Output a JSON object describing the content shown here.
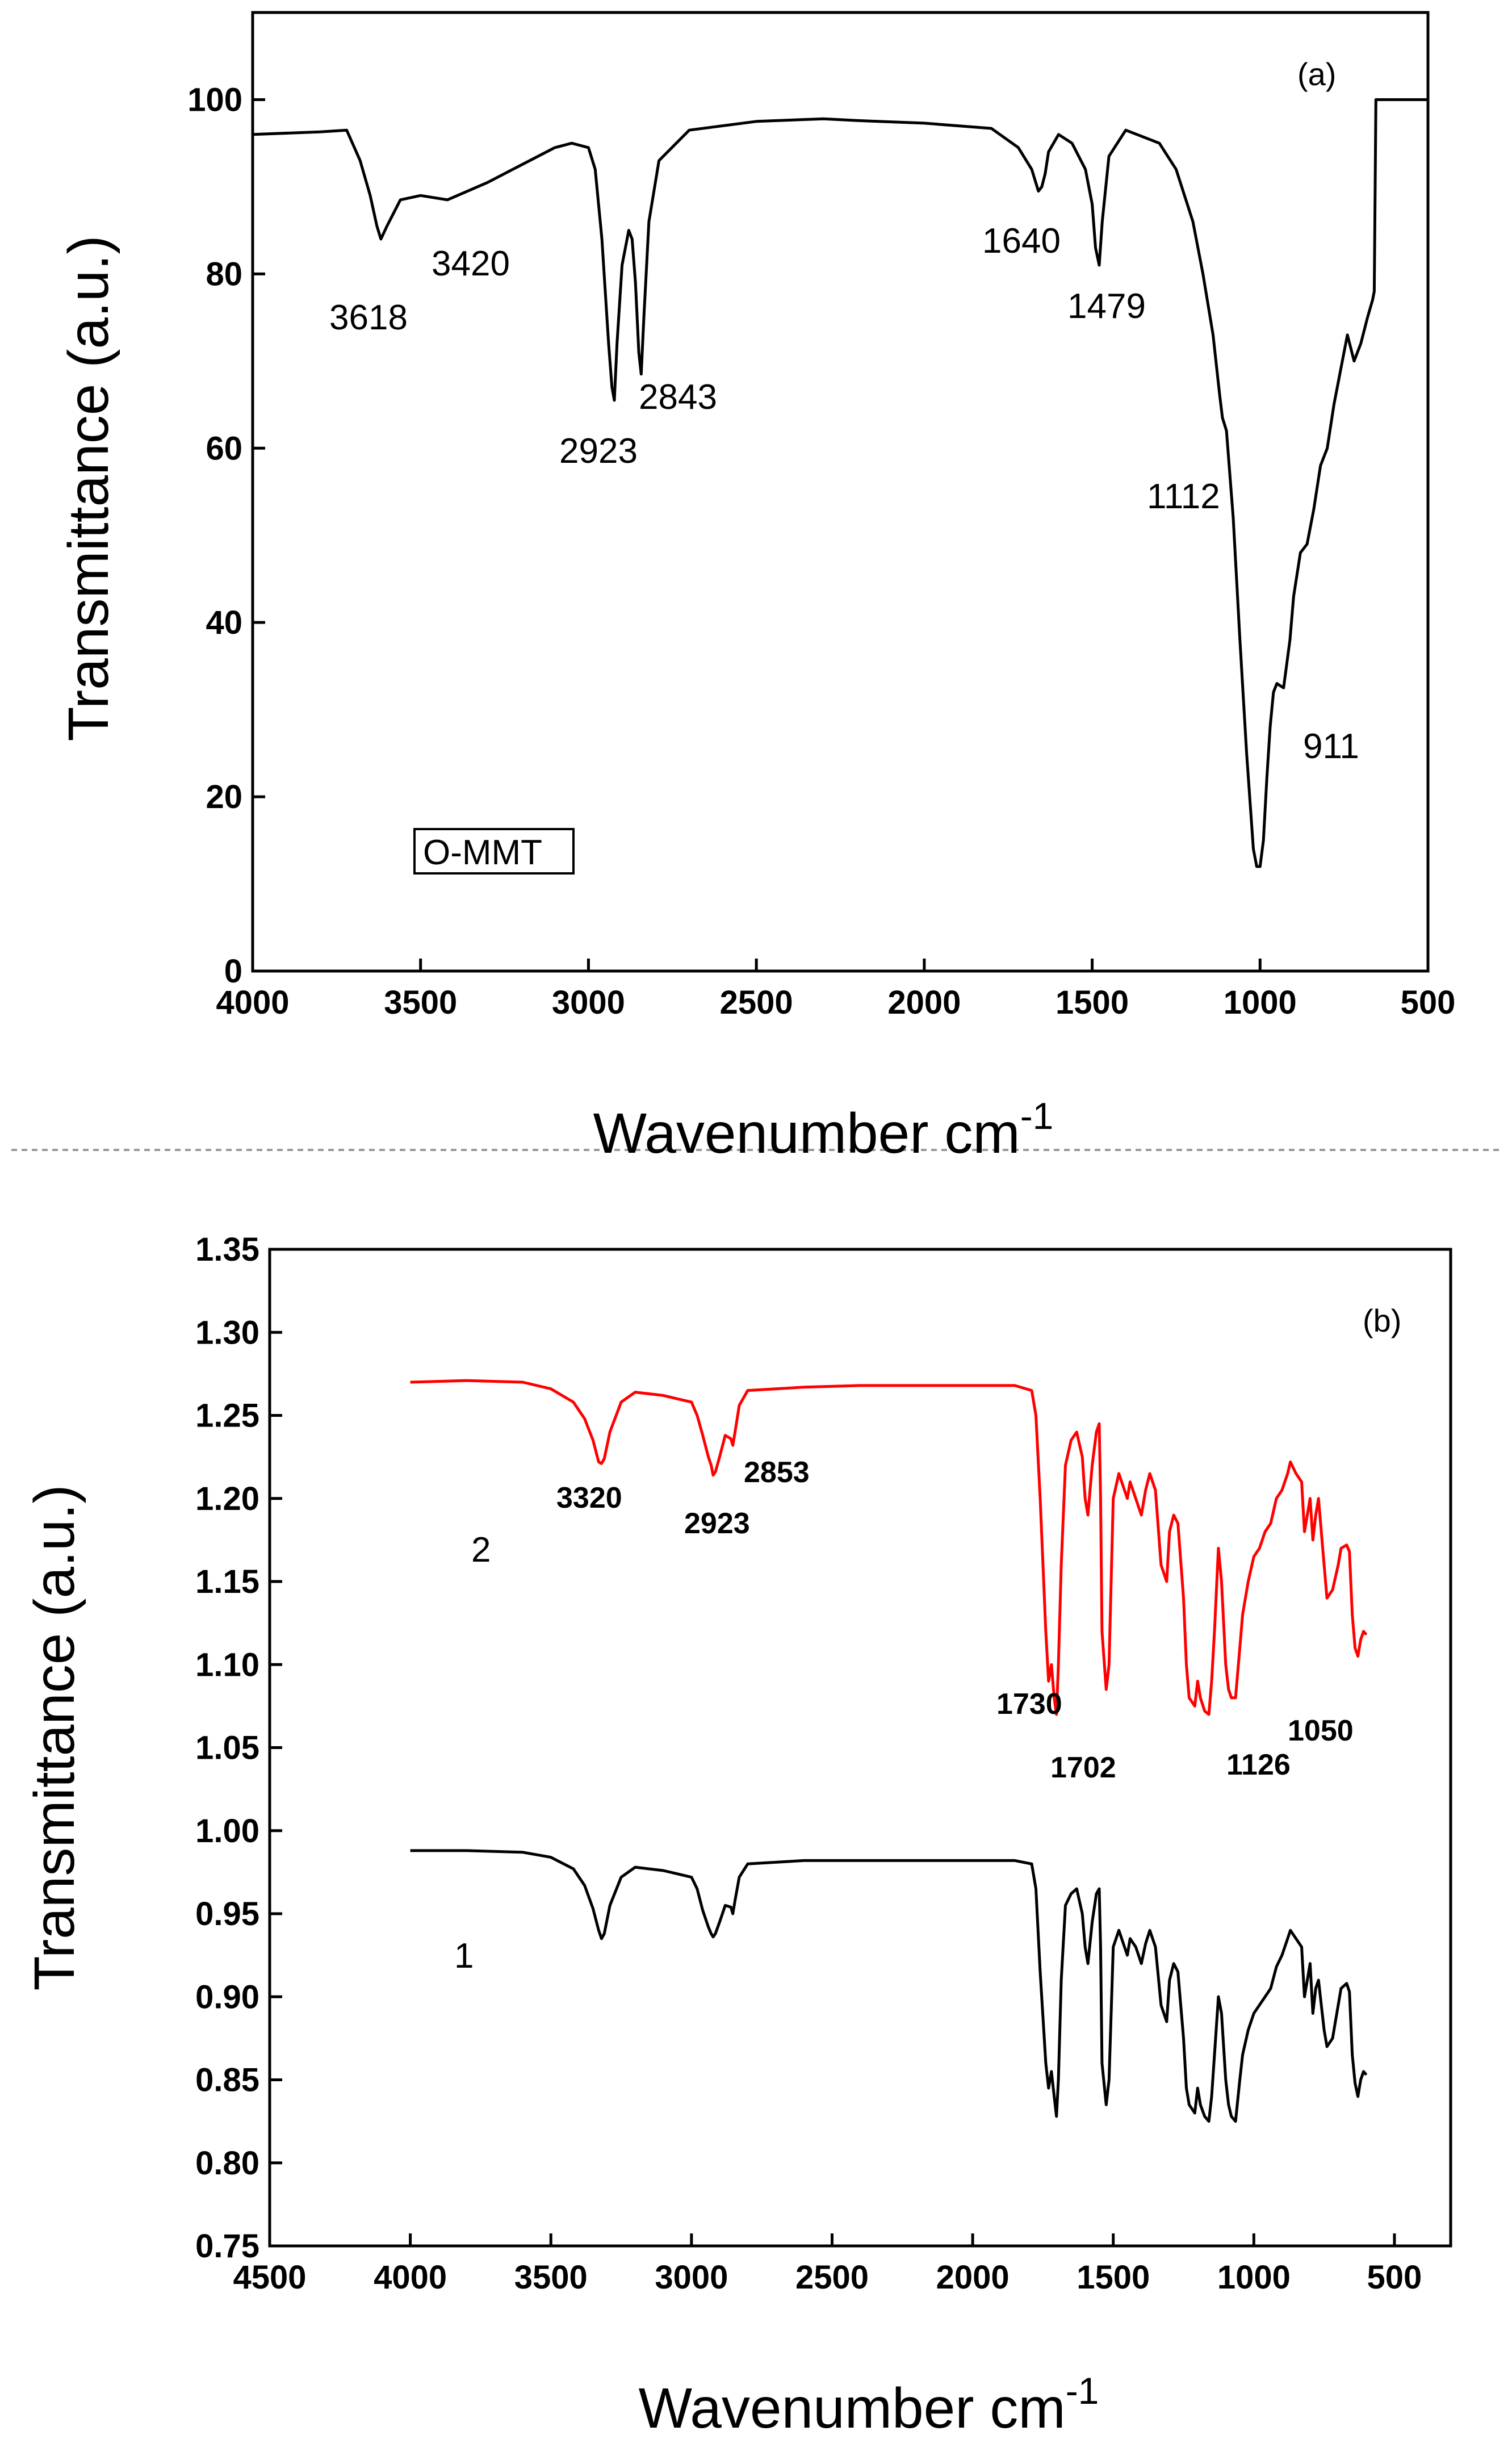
{
  "chart_data": [
    {
      "type": "line",
      "panel_label": "(a)",
      "xlabel": "Wavenumber cm",
      "xlabel_sup": "-1",
      "ylabel": "Transmittance (a.u.)",
      "xlim": [
        4000,
        500
      ],
      "ylim": [
        0,
        110
      ],
      "xticks": [
        4000,
        3500,
        3000,
        2500,
        2000,
        1500,
        1000,
        500
      ],
      "xtick_labels": [
        "4000",
        "3500",
        "3000",
        "2500",
        "2000",
        "1500",
        "1000",
        "500"
      ],
      "yticks": [
        0,
        20,
        40,
        60,
        80,
        100
      ],
      "ytick_labels": [
        "0",
        "20",
        "40",
        "60",
        "80",
        "100"
      ],
      "legend": "O-MMT",
      "series": [
        {
          "name": "O-MMT",
          "color": "#000000",
          "x": [
            4000,
            3800,
            3720,
            3680,
            3650,
            3630,
            3618,
            3600,
            3560,
            3500,
            3420,
            3300,
            3200,
            3100,
            3050,
            3000,
            2980,
            2960,
            2940,
            2930,
            2923,
            2915,
            2900,
            2880,
            2870,
            2860,
            2850,
            2843,
            2835,
            2820,
            2790,
            2700,
            2500,
            2300,
            2200,
            2000,
            1800,
            1720,
            1680,
            1660,
            1650,
            1640,
            1630,
            1600,
            1560,
            1520,
            1500,
            1490,
            1479,
            1470,
            1450,
            1400,
            1300,
            1250,
            1200,
            1170,
            1140,
            1120,
            1112,
            1100,
            1080,
            1060,
            1040,
            1020,
            1010,
            1000,
            990,
            980,
            970,
            960,
            950,
            930,
            911,
            900,
            880,
            860,
            840,
            820,
            800,
            780,
            760,
            740,
            720,
            700,
            680,
            665,
            660,
            655,
            550,
            500
          ],
          "y": [
            96,
            96.3,
            96.5,
            93,
            89,
            85.5,
            84,
            85.5,
            88.5,
            89,
            88.5,
            90.5,
            92.5,
            94.5,
            95,
            94.5,
            92,
            84,
            72,
            67,
            65.5,
            72,
            81,
            85,
            84,
            79,
            71,
            68.5,
            75,
            86,
            93,
            96.5,
            97.5,
            97.8,
            97.6,
            97.3,
            96.7,
            94.5,
            92,
            89.5,
            90,
            91.5,
            94,
            96,
            95,
            92,
            88,
            83,
            81,
            86,
            93.5,
            96.5,
            95,
            92,
            86,
            80,
            73,
            66,
            63.5,
            62,
            52,
            38,
            25,
            14,
            12,
            12,
            15,
            22,
            28,
            32,
            33,
            32.5,
            38,
            43,
            48,
            49,
            53,
            58,
            60,
            65,
            69,
            73,
            70,
            72,
            75,
            77,
            78,
            100,
            100,
            100
          ]
        }
      ],
      "annotations": [
        {
          "text": "3618",
          "x": 3618
        },
        {
          "text": "3420",
          "x": 3420
        },
        {
          "text": "2923",
          "x": 2923
        },
        {
          "text": "2843",
          "x": 2843
        },
        {
          "text": "1640",
          "x": 1640
        },
        {
          "text": "1479",
          "x": 1479
        },
        {
          "text": "1112",
          "x": 1112
        },
        {
          "text": "911",
          "x": 911
        }
      ]
    },
    {
      "type": "line",
      "panel_label": "(b)",
      "xlabel": "Wavenumber cm",
      "xlabel_sup": "-1",
      "ylabel": "Transmittance (a.u.)",
      "xlim": [
        4500,
        300
      ],
      "ylim": [
        0.75,
        1.35
      ],
      "xticks": [
        4500,
        4000,
        3500,
        3000,
        2500,
        2000,
        1500,
        1000,
        500
      ],
      "xtick_labels": [
        "4500",
        "4000",
        "3500",
        "3000",
        "2500",
        "2000",
        "1500",
        "1000",
        "500"
      ],
      "yticks": [
        0.75,
        0.8,
        0.85,
        0.9,
        0.95,
        1.0,
        1.05,
        1.1,
        1.15,
        1.2,
        1.25,
        1.3,
        1.35
      ],
      "ytick_labels": [
        "0.75",
        "0.80",
        "0.85",
        "0.90",
        "0.95",
        "1.00",
        "1.05",
        "1.10",
        "1.15",
        "1.20",
        "1.25",
        "1.30",
        "1.35"
      ],
      "series": [
        {
          "name": "2",
          "color": "#ff0000",
          "x": [
            4000,
            3800,
            3600,
            3500,
            3420,
            3380,
            3350,
            3330,
            3320,
            3310,
            3290,
            3250,
            3200,
            3100,
            3050,
            3000,
            2980,
            2960,
            2940,
            2930,
            2923,
            2915,
            2900,
            2880,
            2860,
            2853,
            2845,
            2830,
            2800,
            2600,
            2400,
            2200,
            2000,
            1850,
            1790,
            1775,
            1760,
            1740,
            1730,
            1720,
            1710,
            1702,
            1695,
            1685,
            1670,
            1650,
            1630,
            1610,
            1600,
            1590,
            1575,
            1560,
            1550,
            1545,
            1540,
            1525,
            1515,
            1500,
            1480,
            1460,
            1450,
            1440,
            1420,
            1400,
            1385,
            1370,
            1350,
            1330,
            1310,
            1300,
            1285,
            1270,
            1250,
            1240,
            1230,
            1210,
            1200,
            1190,
            1175,
            1160,
            1150,
            1140,
            1126,
            1115,
            1100,
            1090,
            1080,
            1065,
            1050,
            1040,
            1020,
            1000,
            980,
            960,
            940,
            920,
            900,
            880,
            870,
            850,
            830,
            820,
            800,
            790,
            780,
            770,
            750,
            740,
            720,
            700,
            690,
            670,
            660,
            650,
            640,
            630,
            620,
            610,
            600
          ],
          "y": [
            1.27,
            1.271,
            1.27,
            1.266,
            1.258,
            1.248,
            1.235,
            1.222,
            1.221,
            1.224,
            1.24,
            1.258,
            1.264,
            1.262,
            1.26,
            1.258,
            1.25,
            1.238,
            1.225,
            1.22,
            1.214,
            1.216,
            1.225,
            1.238,
            1.236,
            1.232,
            1.24,
            1.256,
            1.265,
            1.267,
            1.268,
            1.268,
            1.268,
            1.268,
            1.265,
            1.25,
            1.2,
            1.12,
            1.09,
            1.1,
            1.08,
            1.07,
            1.1,
            1.16,
            1.22,
            1.235,
            1.24,
            1.225,
            1.2,
            1.19,
            1.22,
            1.24,
            1.245,
            1.2,
            1.12,
            1.085,
            1.1,
            1.2,
            1.215,
            1.205,
            1.2,
            1.21,
            1.2,
            1.19,
            1.205,
            1.215,
            1.205,
            1.16,
            1.15,
            1.18,
            1.19,
            1.185,
            1.14,
            1.1,
            1.08,
            1.075,
            1.09,
            1.08,
            1.072,
            1.07,
            1.09,
            1.12,
            1.17,
            1.15,
            1.1,
            1.085,
            1.08,
            1.08,
            1.11,
            1.13,
            1.15,
            1.165,
            1.17,
            1.18,
            1.185,
            1.2,
            1.205,
            1.215,
            1.222,
            1.215,
            1.21,
            1.18,
            1.2,
            1.175,
            1.19,
            1.2,
            1.16,
            1.14,
            1.145,
            1.16,
            1.17,
            1.172,
            1.168,
            1.13,
            1.11,
            1.105,
            1.115,
            1.12,
            1.118
          ]
        },
        {
          "name": "1",
          "color": "#000000",
          "x": [
            4000,
            3800,
            3600,
            3500,
            3420,
            3380,
            3350,
            3330,
            3320,
            3310,
            3290,
            3250,
            3200,
            3100,
            3050,
            3000,
            2980,
            2960,
            2940,
            2930,
            2923,
            2915,
            2900,
            2880,
            2860,
            2853,
            2845,
            2830,
            2800,
            2600,
            2400,
            2200,
            2000,
            1850,
            1790,
            1775,
            1760,
            1740,
            1730,
            1720,
            1710,
            1702,
            1695,
            1685,
            1670,
            1650,
            1630,
            1610,
            1600,
            1590,
            1575,
            1560,
            1550,
            1545,
            1540,
            1525,
            1515,
            1500,
            1480,
            1460,
            1450,
            1440,
            1420,
            1400,
            1385,
            1370,
            1350,
            1330,
            1310,
            1300,
            1285,
            1270,
            1250,
            1240,
            1230,
            1210,
            1200,
            1190,
            1175,
            1160,
            1150,
            1140,
            1126,
            1115,
            1100,
            1090,
            1080,
            1065,
            1050,
            1040,
            1020,
            1000,
            980,
            960,
            940,
            920,
            900,
            880,
            870,
            850,
            830,
            820,
            800,
            790,
            780,
            770,
            750,
            740,
            720,
            700,
            690,
            670,
            660,
            650,
            640,
            630,
            620,
            610,
            600
          ],
          "y": [
            0.988,
            0.988,
            0.987,
            0.984,
            0.977,
            0.967,
            0.953,
            0.94,
            0.935,
            0.938,
            0.955,
            0.972,
            0.978,
            0.976,
            0.974,
            0.972,
            0.965,
            0.952,
            0.942,
            0.938,
            0.936,
            0.938,
            0.945,
            0.955,
            0.954,
            0.95,
            0.958,
            0.972,
            0.98,
            0.982,
            0.982,
            0.982,
            0.982,
            0.982,
            0.98,
            0.965,
            0.915,
            0.86,
            0.845,
            0.855,
            0.84,
            0.828,
            0.85,
            0.91,
            0.955,
            0.962,
            0.965,
            0.95,
            0.93,
            0.92,
            0.945,
            0.962,
            0.965,
            0.93,
            0.86,
            0.835,
            0.85,
            0.93,
            0.94,
            0.93,
            0.925,
            0.935,
            0.93,
            0.92,
            0.932,
            0.94,
            0.93,
            0.895,
            0.885,
            0.91,
            0.92,
            0.915,
            0.875,
            0.845,
            0.835,
            0.83,
            0.845,
            0.835,
            0.828,
            0.825,
            0.84,
            0.865,
            0.9,
            0.89,
            0.85,
            0.835,
            0.828,
            0.825,
            0.85,
            0.865,
            0.88,
            0.89,
            0.895,
            0.9,
            0.905,
            0.918,
            0.925,
            0.935,
            0.94,
            0.935,
            0.93,
            0.9,
            0.92,
            0.89,
            0.905,
            0.91,
            0.88,
            0.87,
            0.875,
            0.895,
            0.905,
            0.908,
            0.903,
            0.865,
            0.848,
            0.84,
            0.85,
            0.855,
            0.853
          ]
        }
      ],
      "annotations": [
        {
          "text": "3320",
          "x": 3320
        },
        {
          "text": "2923",
          "x": 2923
        },
        {
          "text": "2853",
          "x": 2853
        },
        {
          "text": "1730",
          "x": 1730
        },
        {
          "text": "1702",
          "x": 1702
        },
        {
          "text": "1126",
          "x": 1126
        },
        {
          "text": "1050",
          "x": 1050
        }
      ]
    }
  ]
}
